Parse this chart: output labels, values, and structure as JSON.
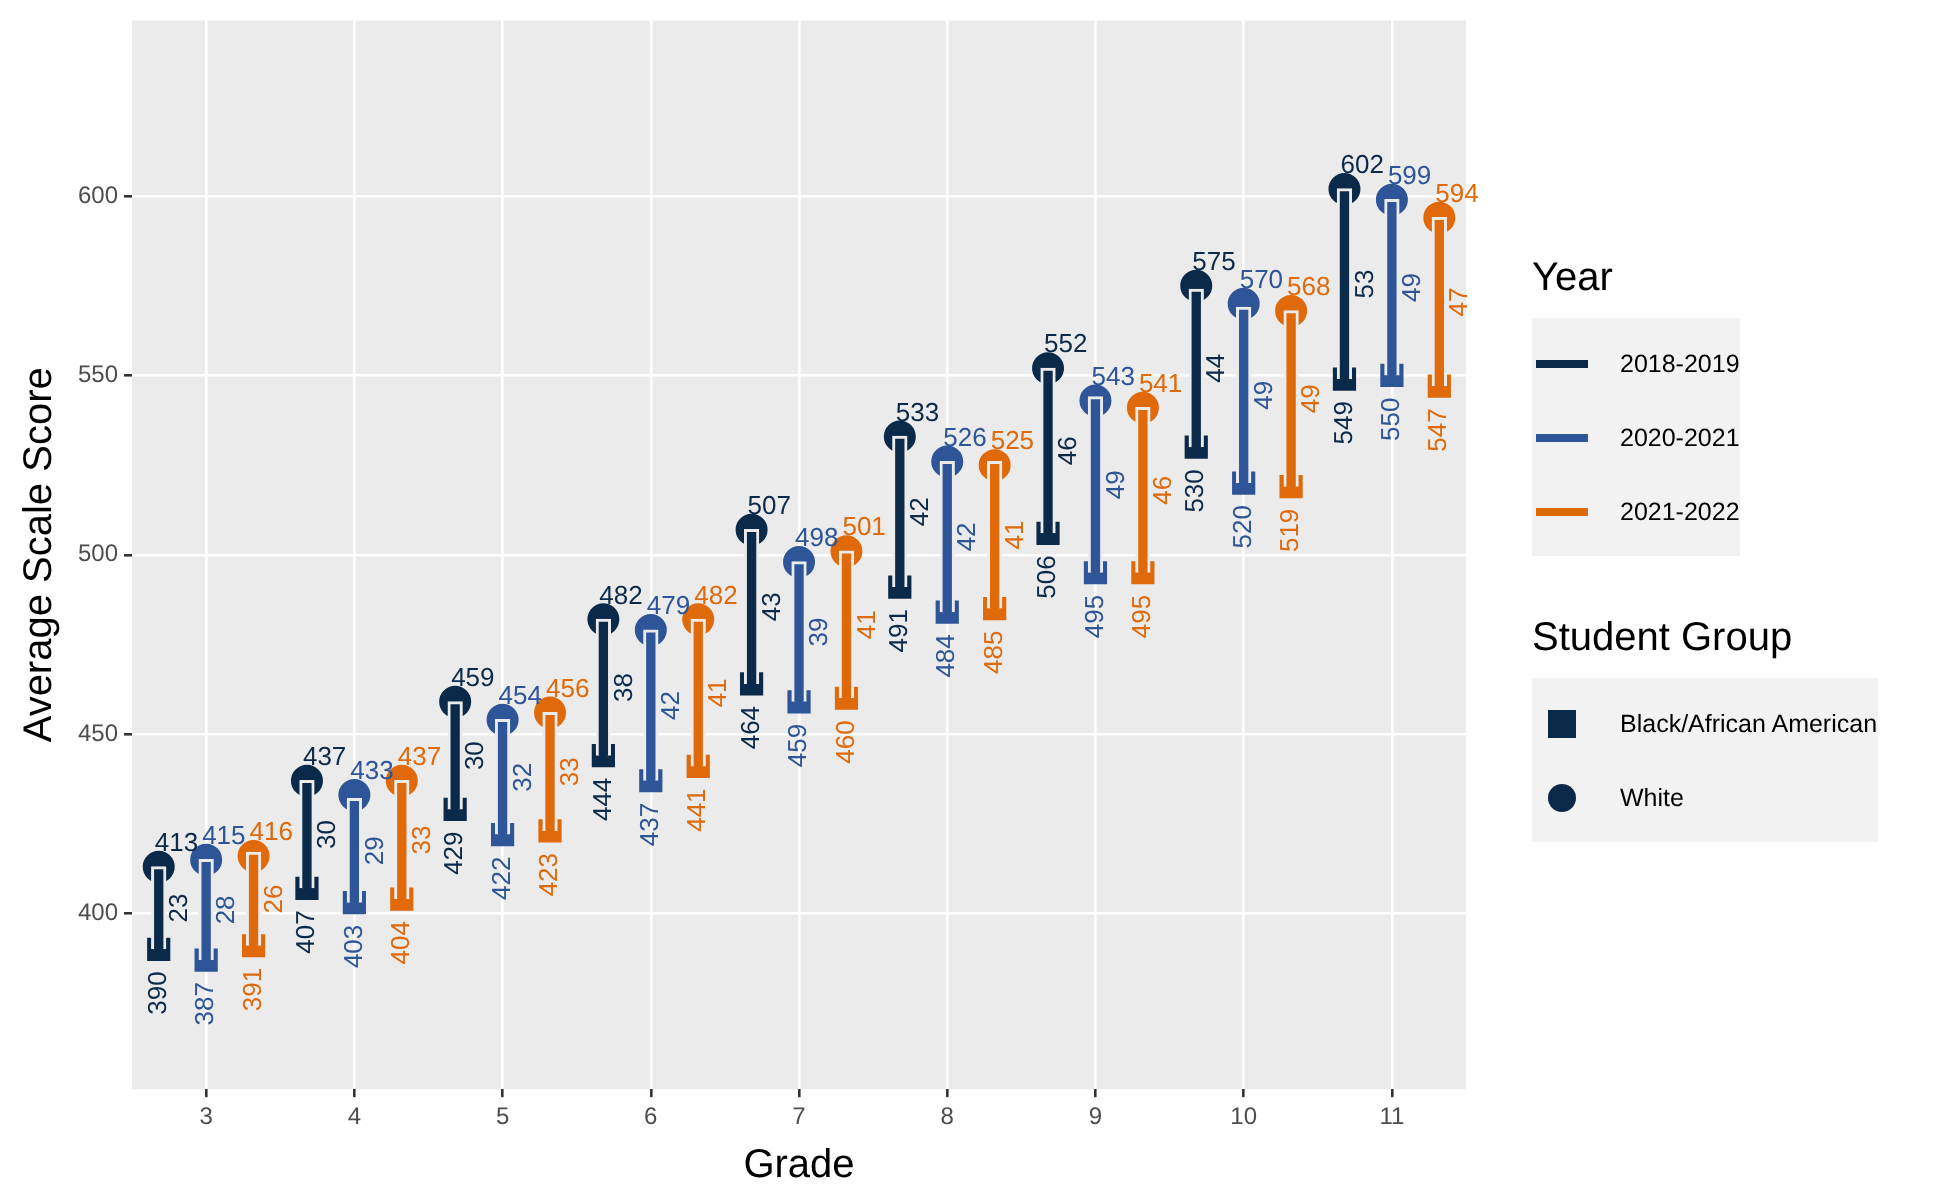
{
  "chart_data": {
    "type": "bar",
    "xlabel": "Grade",
    "ylabel": "Average Scale Score",
    "legend_title": [
      "Year",
      "Student Group"
    ],
    "legend": "right",
    "grid": true,
    "data_labels": true,
    "categories": [
      "3",
      "4",
      "5",
      "6",
      "7",
      "8",
      "9",
      "10",
      "11"
    ],
    "ylim": [
      351,
      649
    ],
    "yticks": [
      400,
      450,
      500,
      550,
      600
    ],
    "series": [
      {
        "name": "2018-2019",
        "color": "#0b2a4a",
        "base": [
          390,
          407,
          429,
          444,
          464,
          491,
          506,
          530,
          549
        ],
        "values": [
          23,
          30,
          30,
          38,
          43,
          42,
          46,
          44,
          53
        ]
      },
      {
        "name": "2020-2021",
        "color": "#2e5597",
        "base": [
          387,
          403,
          422,
          437,
          459,
          484,
          495,
          520,
          550
        ],
        "values": [
          28,
          29,
          32,
          42,
          39,
          42,
          49,
          49,
          49
        ]
      },
      {
        "name": "2021-2022",
        "color": "#e0690a",
        "base": [
          391,
          404,
          423,
          441,
          460,
          485,
          495,
          519,
          547
        ],
        "values": [
          26,
          33,
          33,
          41,
          41,
          41,
          46,
          49,
          47
        ]
      },
      {
        "type": "scatter",
        "name": "Black/African American",
        "marker": "square",
        "color": "#0b2a4a",
        "values": [
          390,
          407,
          429,
          444,
          464,
          491,
          506,
          530,
          549
        ]
      },
      {
        "type": "scatter",
        "name": "White",
        "marker": "circle",
        "color": "#0b2a4a",
        "values": [
          413,
          437,
          459,
          482,
          507,
          533,
          552,
          575,
          602
        ]
      },
      {
        "type": "scatter",
        "marker": "square",
        "color": "#2e5597",
        "values": [
          387,
          403,
          422,
          437,
          459,
          484,
          495,
          520,
          550
        ]
      },
      {
        "type": "scatter",
        "marker": "circle",
        "color": "#2e5597",
        "values": [
          415,
          433,
          454,
          479,
          498,
          526,
          543,
          570,
          599
        ]
      },
      {
        "type": "scatter",
        "marker": "square",
        "color": "#e0690a",
        "values": [
          391,
          404,
          423,
          441,
          460,
          485,
          495,
          519,
          547
        ]
      },
      {
        "type": "scatter",
        "marker": "circle",
        "color": "#e0690a",
        "values": [
          416,
          437,
          456,
          482,
          501,
          525,
          541,
          568,
          594
        ]
      }
    ]
  }
}
